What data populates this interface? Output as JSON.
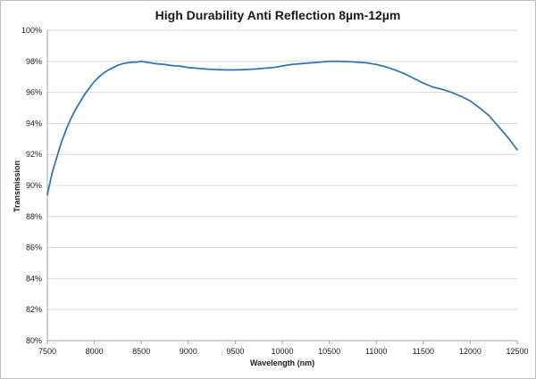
{
  "chart_data": {
    "type": "line",
    "title": "High Durability Anti Reflection 8µm-12µm",
    "xlabel": "Wavelength (nm)",
    "ylabel": "Transmission",
    "xlim": [
      7500,
      12500
    ],
    "ylim": [
      80,
      100
    ],
    "x_ticks": [
      7500,
      8000,
      8500,
      9000,
      9500,
      10000,
      10500,
      11000,
      11500,
      12000,
      12500
    ],
    "y_ticks": [
      80,
      82,
      84,
      86,
      88,
      90,
      92,
      94,
      96,
      98,
      100
    ],
    "y_tick_labels": [
      "80%",
      "82%",
      "84%",
      "86%",
      "88%",
      "90%",
      "92%",
      "94%",
      "96%",
      "98%",
      "100%"
    ],
    "grid": "horizontal",
    "legend": "none",
    "series_color": "#2e75b6",
    "series": [
      {
        "x": [
          7500,
          7550,
          7600,
          7650,
          7700,
          7750,
          7800,
          7850,
          7900,
          7950,
          8000,
          8050,
          8100,
          8150,
          8200,
          8250,
          8300,
          8350,
          8400,
          8450,
          8500,
          8550,
          8600,
          8650,
          8700,
          8750,
          8800,
          8850,
          8900,
          8950,
          9000,
          9100,
          9200,
          9300,
          9400,
          9500,
          9600,
          9700,
          9800,
          9900,
          10000,
          10100,
          10200,
          10300,
          10400,
          10500,
          10600,
          10700,
          10800,
          10900,
          11000,
          11100,
          11200,
          11300,
          11400,
          11500,
          11600,
          11700,
          11800,
          11900,
          12000,
          12100,
          12200,
          12300,
          12400,
          12500
        ],
        "y": [
          89.4,
          90.8,
          91.8,
          92.8,
          93.6,
          94.3,
          94.9,
          95.4,
          95.9,
          96.3,
          96.7,
          97.0,
          97.25,
          97.45,
          97.6,
          97.75,
          97.85,
          97.9,
          97.95,
          97.95,
          98.0,
          97.95,
          97.9,
          97.85,
          97.82,
          97.8,
          97.75,
          97.72,
          97.7,
          97.65,
          97.6,
          97.55,
          97.5,
          97.47,
          97.45,
          97.45,
          97.47,
          97.5,
          97.55,
          97.6,
          97.7,
          97.8,
          97.85,
          97.9,
          97.95,
          98.0,
          98.0,
          97.98,
          97.95,
          97.9,
          97.8,
          97.65,
          97.45,
          97.2,
          96.9,
          96.6,
          96.35,
          96.2,
          96.0,
          95.75,
          95.45,
          95.0,
          94.5,
          93.8,
          93.1,
          92.3
        ]
      }
    ]
  }
}
